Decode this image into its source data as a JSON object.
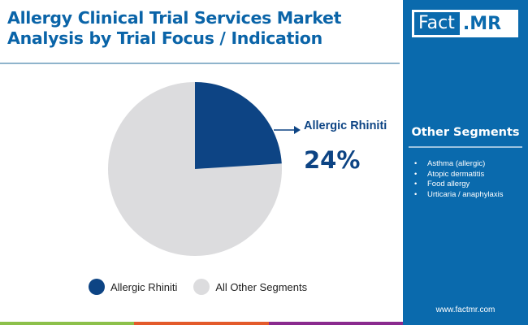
{
  "header": {
    "title_line1": "Allergy Clinical Trial Services Market",
    "title_line2": "Analysis by Trial Focus / Indication"
  },
  "callout": {
    "label": "Allergic Rhiniti",
    "value": "24%"
  },
  "legend": [
    {
      "label": "Allergic Rhiniti",
      "color": "#0d4484"
    },
    {
      "label": "All Other Segments",
      "color": "#dcdcde"
    }
  ],
  "sidebar": {
    "logo_fact": "Fact",
    "logo_mr": ".MR",
    "segments_title": "Other Segments",
    "segments": [
      "Asthma (allergic)",
      "Atopic dermatitis",
      "Food allergy",
      "Urticaria / anaphylaxis"
    ],
    "website": "www.factmr.com"
  },
  "colors": {
    "brand_blue": "#0a6aad",
    "slice_primary": "#0d4484",
    "slice_other": "#dcdcde",
    "bar": [
      "#8cc04a",
      "#e35a2a",
      "#8a2a8e"
    ]
  },
  "chart_data": {
    "type": "pie",
    "title": "Allergy Clinical Trial Services Market Analysis by Trial Focus / Indication",
    "categories": [
      "Allergic Rhiniti",
      "All Other Segments"
    ],
    "values": [
      24,
      76
    ],
    "unit": "%",
    "annotations": [
      {
        "label": "Allergic Rhiniti",
        "value": "24%"
      }
    ],
    "legend_position": "bottom"
  }
}
